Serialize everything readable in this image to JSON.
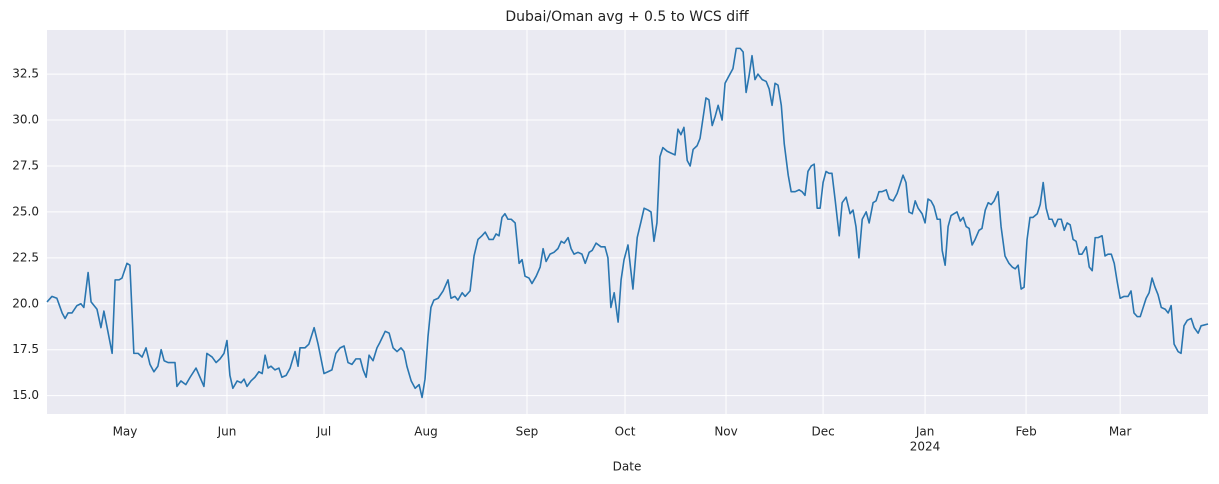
{
  "chart_data": {
    "type": "line",
    "title": "Dubai/Oman avg + 0.5 to WCS diff",
    "x_label": "Date",
    "grid": true,
    "series": [
      {
        "color": "#2a76b0",
        "x": [
          0,
          1.5,
          3.0,
          4.6,
          5.5,
          6.4,
          7.6,
          9.1,
          10.3,
          11.2,
          12.5,
          13.4,
          15.2,
          16.4,
          17.3,
          18.5,
          19.8,
          20.7,
          21.9,
          22.8,
          24.3,
          25.2,
          26.4,
          27.7,
          28.9,
          30.1,
          31.3,
          32.5,
          33.7,
          34.7,
          35.6,
          36.8,
          38.0,
          38.9,
          39.5,
          40.7,
          42.2,
          43.5,
          45.3,
          46.5,
          47.7,
          48.6,
          50.2,
          51.4,
          52.6,
          53.8,
          54.7,
          55.6,
          56.5,
          57.8,
          59.0,
          59.9,
          60.8,
          62.0,
          63.2,
          64.4,
          65.4,
          66.3,
          67.2,
          68.1,
          69.3,
          70.5,
          71.4,
          72.7,
          73.9,
          75.4,
          76.3,
          76.9,
          78.4,
          79.6,
          81.2,
          82.4,
          83.3,
          84.2,
          85.4,
          86.6,
          87.8,
          89.1,
          90.3,
          91.5,
          92.7,
          93.9,
          95.2,
          96.1,
          97.0,
          97.9,
          99.1,
          100.3,
          101.2,
          102.8,
          104.0,
          105.2,
          106.4,
          107.6,
          108.5,
          109.4,
          110.7,
          111.9,
          113.1,
          114.0,
          114.9,
          115.8,
          116.7,
          117.6,
          118.9,
          120.4,
          121.9,
          122.8,
          124.0,
          124.9,
          126.2,
          127.1,
          128.6,
          129.8,
          131.0,
          132.2,
          133.2,
          134.4,
          135.6,
          136.5,
          137.4,
          138.3,
          139.2,
          140.1,
          141.1,
          142.3,
          143.5,
          144.4,
          145.3,
          146.5,
          147.4,
          148.7,
          149.9,
          150.8,
          151.7,
          152.9,
          154.1,
          155.3,
          156.3,
          157.2,
          158.4,
          159.3,
          160.2,
          161.4,
          162.6,
          163.6,
          164.8,
          165.7,
          166.9,
          168.4,
          169.6,
          170.5,
          171.4,
          172.4,
          173.6,
          174.5,
          175.4,
          176.6,
          178.1,
          179.4,
          180.6,
          181.5,
          182.7,
          183.6,
          184.5,
          185.4,
          186.3,
          187.2,
          188.5,
          189.7,
          190.9,
          191.8,
          192.7,
          193.6,
          194.6,
          195.5,
          196.4,
          197.6,
          198.5,
          199.4,
          200.3,
          201.2,
          202.2,
          203.1,
          204.0,
          205.2,
          206.1,
          207.3,
          208.5,
          209.5,
          210.7,
          211.6,
          212.5,
          213.4,
          214.3,
          215.2,
          216.1,
          217.4,
          218.6,
          219.5,
          220.4,
          221.3,
          222.2,
          223.2,
          224.1,
          225.3,
          226.2,
          227.4,
          228.6,
          229.5,
          230.4,
          231.3,
          232.3,
          233.2,
          234.1,
          235.0,
          235.9,
          236.8,
          237.7,
          238.6,
          239.6,
          240.8,
          241.7,
          242.9,
          244.1,
          245.0,
          245.9,
          246.8,
          247.8,
          249.0,
          249.9,
          251.1,
          252.0,
          252.9,
          253.8,
          255.1,
          256.0,
          257.2,
          258.4,
          259.3,
          260.2,
          261.1,
          262.0,
          263.0,
          263.9,
          264.8,
          266.0,
          266.9,
          267.8,
          268.7,
          269.6,
          270.6,
          271.5,
          272.1,
          273.0,
          273.9,
          274.8,
          275.7,
          276.6,
          277.6,
          278.5,
          279.4,
          280.3,
          281.2,
          282.1,
          283.3,
          284.2,
          285.2,
          286.1,
          287.0,
          287.9,
          289.1,
          290.0,
          291.2,
          292.4,
          293.4,
          294.3,
          295.2,
          296.1,
          297.0,
          297.9,
          298.8,
          299.7,
          301.0,
          301.9,
          302.8,
          303.7,
          304.6,
          305.5,
          306.4,
          307.3,
          308.3,
          309.2,
          310.1,
          311.0,
          311.9,
          312.8,
          313.7,
          314.6,
          315.9,
          316.8,
          317.7,
          318.6,
          319.5,
          320.7,
          321.6,
          322.5,
          323.5,
          324.4,
          325.3,
          326.2,
          327.4,
          328.6,
          329.5,
          330.4,
          331.4,
          332.3,
          333.2,
          334.1,
          335.0,
          335.9,
          336.8,
          337.7,
          338.7,
          339.9,
          340.8,
          341.7,
          342.6,
          343.8,
          344.7,
          345.6,
          346.6,
          347.8,
          348.7,
          349.9,
          350.8,
          352.9
        ],
        "values": [
          20.1,
          20.4,
          20.3,
          19.5,
          19.2,
          19.5,
          19.5,
          19.9,
          20.0,
          19.8,
          21.7,
          20.1,
          19.7,
          18.7,
          19.6,
          18.5,
          17.3,
          21.3,
          21.3,
          21.4,
          22.2,
          22.1,
          17.3,
          17.3,
          17.1,
          17.6,
          16.7,
          16.3,
          16.6,
          17.5,
          16.9,
          16.8,
          16.8,
          16.8,
          15.5,
          15.8,
          15.6,
          16.0,
          16.5,
          16.0,
          15.5,
          17.3,
          17.1,
          16.8,
          17.0,
          17.3,
          18.0,
          16.1,
          15.4,
          15.8,
          15.7,
          15.9,
          15.5,
          15.8,
          16.0,
          16.3,
          16.2,
          17.2,
          16.5,
          16.6,
          16.4,
          16.5,
          16.0,
          16.1,
          16.5,
          17.4,
          16.6,
          17.6,
          17.6,
          17.8,
          18.7,
          17.8,
          17.0,
          16.2,
          16.3,
          16.4,
          17.3,
          17.6,
          17.7,
          16.8,
          16.7,
          17.0,
          17.0,
          16.4,
          16.0,
          17.2,
          16.9,
          17.6,
          17.9,
          18.5,
          18.4,
          17.6,
          17.4,
          17.6,
          17.4,
          16.6,
          15.8,
          15.4,
          15.6,
          14.9,
          15.9,
          18.2,
          19.8,
          20.2,
          20.3,
          20.7,
          21.3,
          20.3,
          20.4,
          20.2,
          20.6,
          20.4,
          20.7,
          22.6,
          23.5,
          23.7,
          23.9,
          23.5,
          23.5,
          23.8,
          23.7,
          24.7,
          24.9,
          24.6,
          24.6,
          24.4,
          22.2,
          22.4,
          21.5,
          21.4,
          21.1,
          21.5,
          22.0,
          23.0,
          22.3,
          22.7,
          22.8,
          23.0,
          23.4,
          23.3,
          23.6,
          23.0,
          22.7,
          22.8,
          22.7,
          22.2,
          22.8,
          22.9,
          23.3,
          23.1,
          23.1,
          22.5,
          19.8,
          20.6,
          19.0,
          21.3,
          22.4,
          23.2,
          20.8,
          23.6,
          24.5,
          25.2,
          25.1,
          25.0,
          23.4,
          24.4,
          28.0,
          28.5,
          28.3,
          28.2,
          28.1,
          29.5,
          29.2,
          29.6,
          27.8,
          27.5,
          28.4,
          28.6,
          29.0,
          30.1,
          31.2,
          31.1,
          29.7,
          30.2,
          30.8,
          30.0,
          32.0,
          32.4,
          32.8,
          33.9,
          33.9,
          33.7,
          31.5,
          32.4,
          33.5,
          32.2,
          32.5,
          32.2,
          32.1,
          31.7,
          30.8,
          32.0,
          31.9,
          30.8,
          28.7,
          27.0,
          26.1,
          26.1,
          26.2,
          26.1,
          25.9,
          27.2,
          27.5,
          27.6,
          25.2,
          25.2,
          26.6,
          27.2,
          27.1,
          27.1,
          25.6,
          23.7,
          25.5,
          25.8,
          24.9,
          25.1,
          24.2,
          22.5,
          24.6,
          25.0,
          24.4,
          25.5,
          25.6,
          26.1,
          26.1,
          26.2,
          25.7,
          25.6,
          26.0,
          26.5,
          27.0,
          26.6,
          25.0,
          24.9,
          25.6,
          25.2,
          24.9,
          24.4,
          25.7,
          25.6,
          25.3,
          24.6,
          24.6,
          22.9,
          22.1,
          24.2,
          24.8,
          24.9,
          25.0,
          24.5,
          24.7,
          24.2,
          24.1,
          23.2,
          23.5,
          24.0,
          24.1,
          25.1,
          25.5,
          25.4,
          25.6,
          26.1,
          24.2,
          22.6,
          22.2,
          22.0,
          21.9,
          22.1,
          20.8,
          20.9,
          23.5,
          24.7,
          24.7,
          24.9,
          25.4,
          26.6,
          25.2,
          24.6,
          24.6,
          24.2,
          24.6,
          24.6,
          24.0,
          24.4,
          24.3,
          23.5,
          23.4,
          22.7,
          22.7,
          23.1,
          22.0,
          21.8,
          23.6,
          23.6,
          23.7,
          22.6,
          22.7,
          22.7,
          22.2,
          21.2,
          20.3,
          20.4,
          20.4,
          20.7,
          19.5,
          19.3,
          19.3,
          19.8,
          20.3,
          20.6,
          21.4,
          20.9,
          20.5,
          19.8,
          19.7,
          19.5,
          19.9,
          17.8,
          17.4,
          17.3,
          18.8,
          19.1,
          19.2,
          18.7,
          18.4,
          18.8,
          18.9
        ]
      }
    ],
    "xlim": [
      0,
      352.9
    ],
    "xticks": [
      {
        "value": 23.7,
        "label": "May"
      },
      {
        "value": 54.7,
        "label": "Jun"
      },
      {
        "value": 84.2,
        "label": "Jul"
      },
      {
        "value": 115.2,
        "label": "Aug"
      },
      {
        "value": 145.9,
        "label": "Sep"
      },
      {
        "value": 175.7,
        "label": "Oct"
      },
      {
        "value": 206.4,
        "label": "Nov"
      },
      {
        "value": 235.9,
        "label": "Dec"
      },
      {
        "value": 266.9,
        "label": "Jan",
        "sublabel": "2024"
      },
      {
        "value": 297.6,
        "label": "Feb"
      },
      {
        "value": 326.2,
        "label": "Mar"
      }
    ],
    "ylim": [
      14.0,
      34.9
    ],
    "yticks": [
      {
        "value": 15,
        "label": "15.0"
      },
      17.5,
      {
        "value": 20,
        "label": "20.0"
      },
      22.5,
      {
        "value": 25,
        "label": "25.0"
      },
      27.5,
      {
        "value": 30,
        "label": "30.0"
      },
      32.5
    ]
  }
}
